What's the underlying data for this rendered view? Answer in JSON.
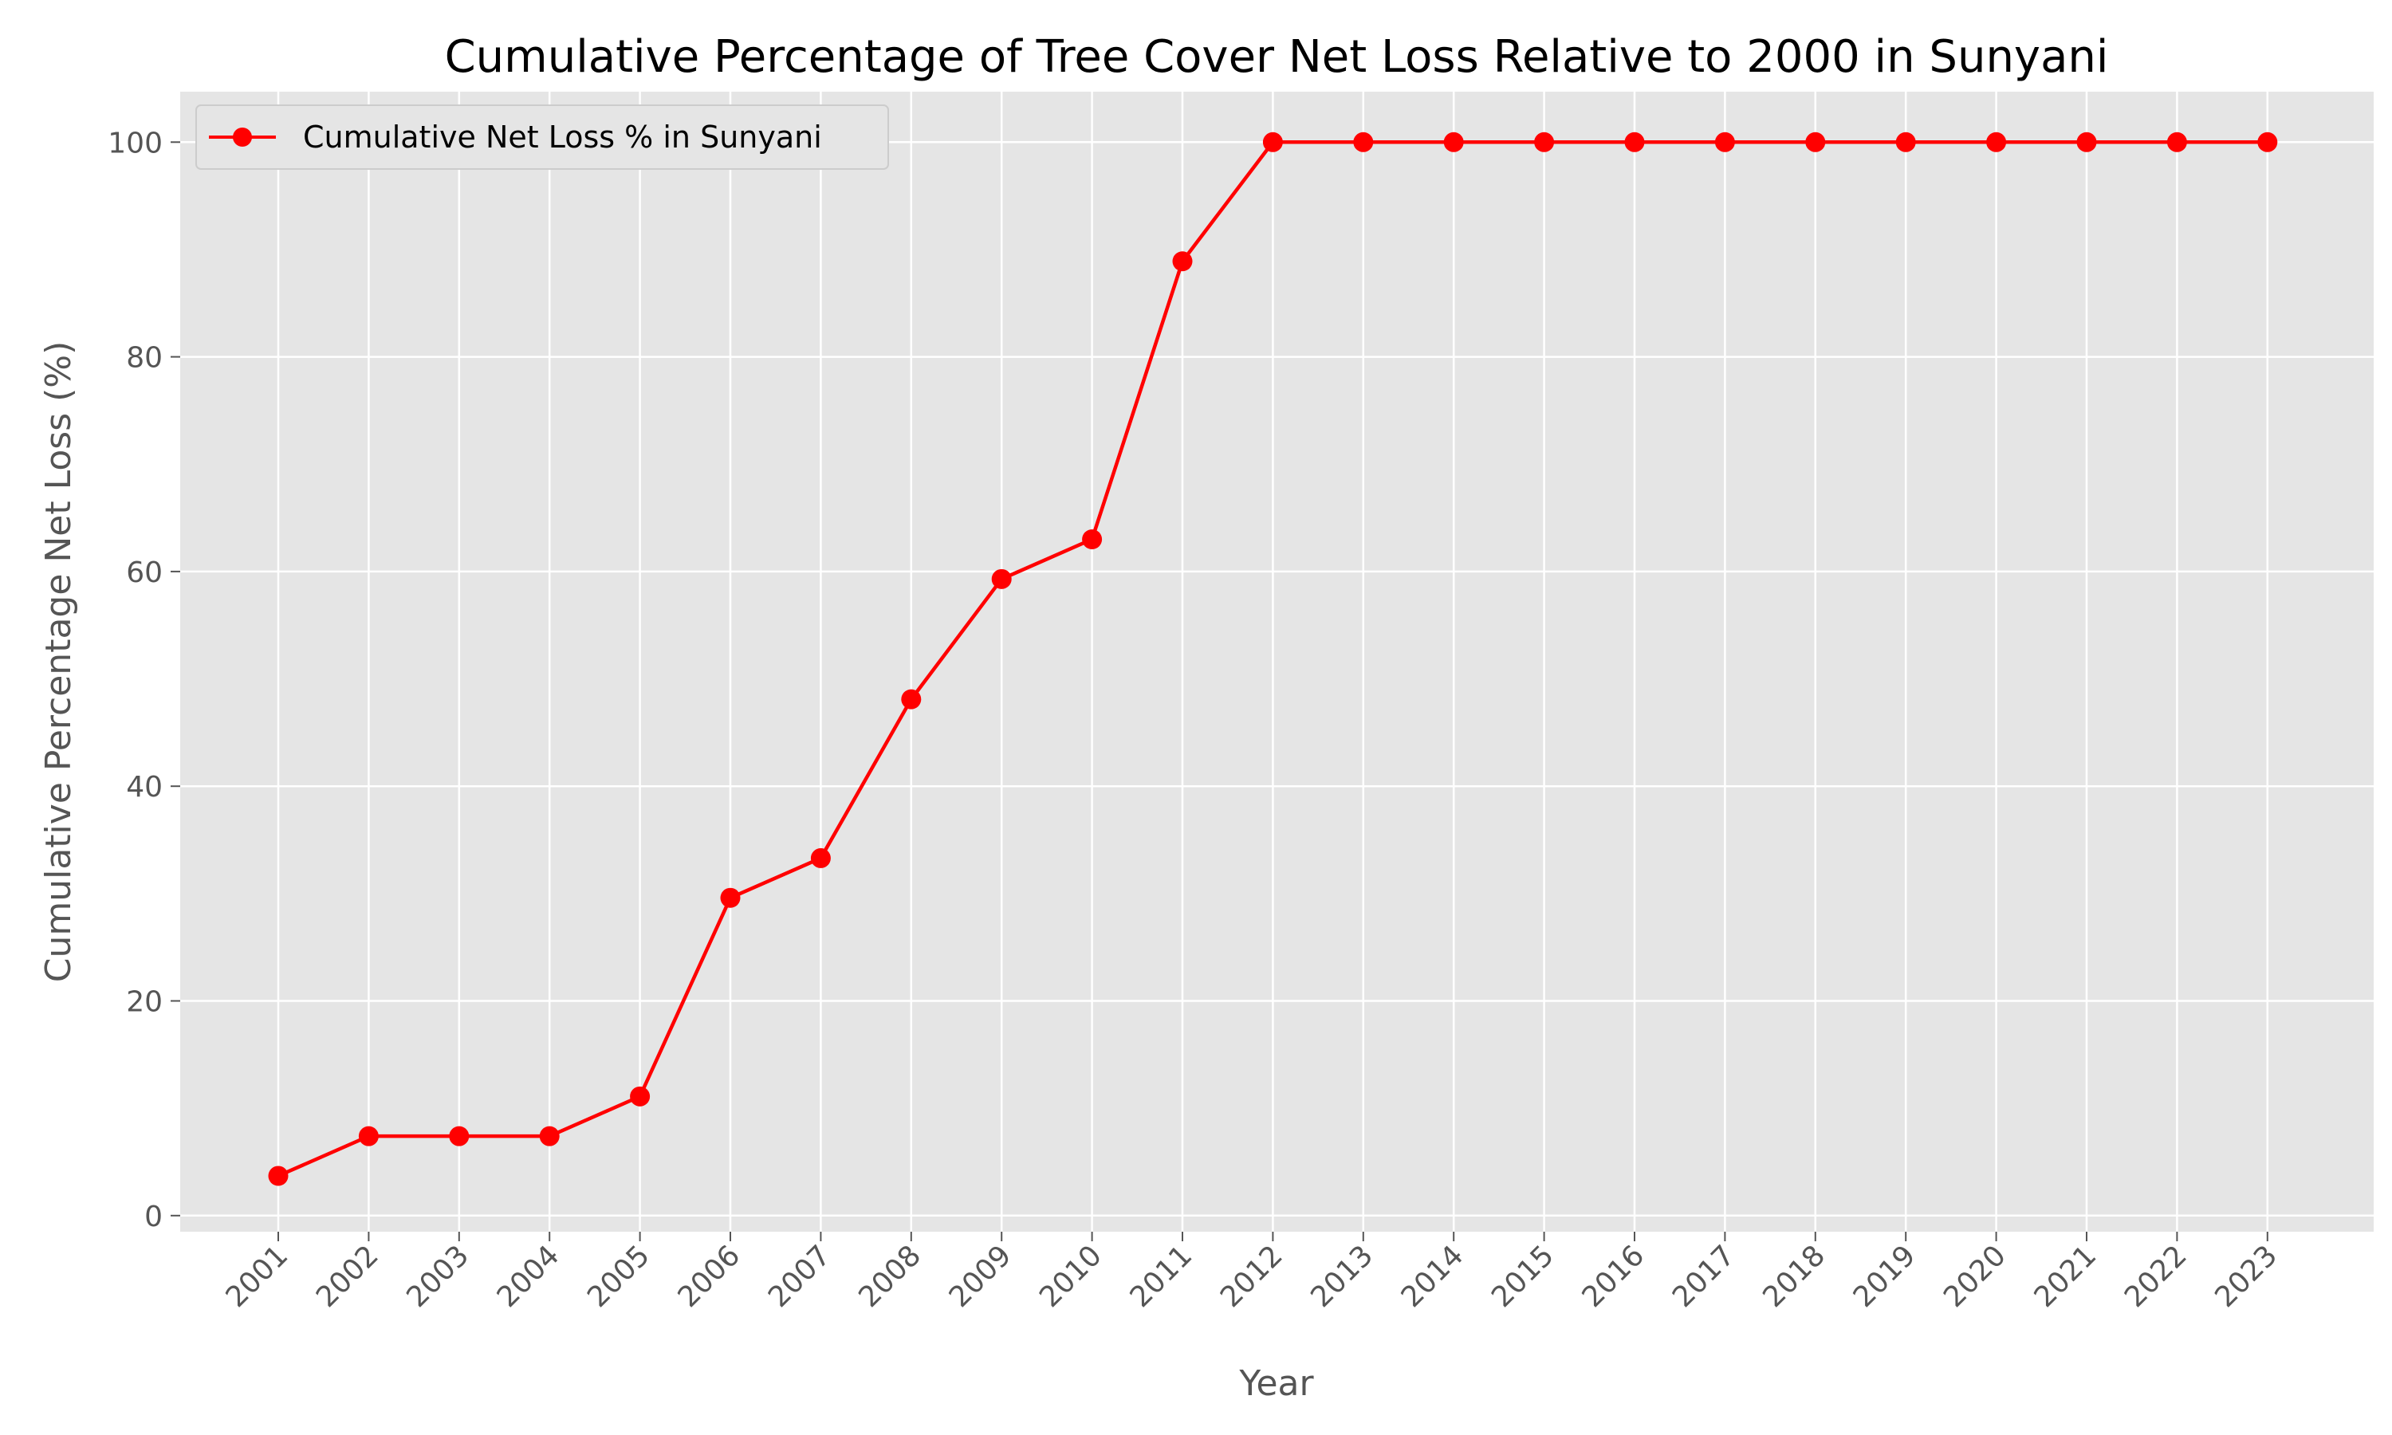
{
  "chart_data": {
    "type": "line",
    "title": "Cumulative Percentage of Tree Cover Net Loss Relative to 2000 in Sunyani",
    "xlabel": "Year",
    "ylabel": "Cumulative Percentage Net Loss (%)",
    "x": [
      "2001",
      "2002",
      "2003",
      "2004",
      "2005",
      "2006",
      "2007",
      "2008",
      "2009",
      "2010",
      "2011",
      "2012",
      "2013",
      "2014",
      "2015",
      "2016",
      "2017",
      "2018",
      "2019",
      "2020",
      "2021",
      "2022",
      "2023"
    ],
    "series": [
      {
        "name": "Cumulative Net Loss % in Sunyani",
        "color": "#ff0000",
        "values": [
          3.7,
          7.4,
          7.4,
          7.4,
          11.1,
          29.6,
          33.3,
          48.1,
          59.3,
          63.0,
          88.9,
          100,
          100,
          100,
          100,
          100,
          100,
          100,
          100,
          100,
          100,
          100,
          100
        ]
      }
    ],
    "yticks": [
      0,
      20,
      40,
      60,
      80,
      100
    ],
    "ylim": [
      -1.5,
      104.7
    ],
    "grid": true,
    "legend_position": "upper-left",
    "background_color": "#e5e5e5",
    "grid_color": "#ffffff"
  }
}
